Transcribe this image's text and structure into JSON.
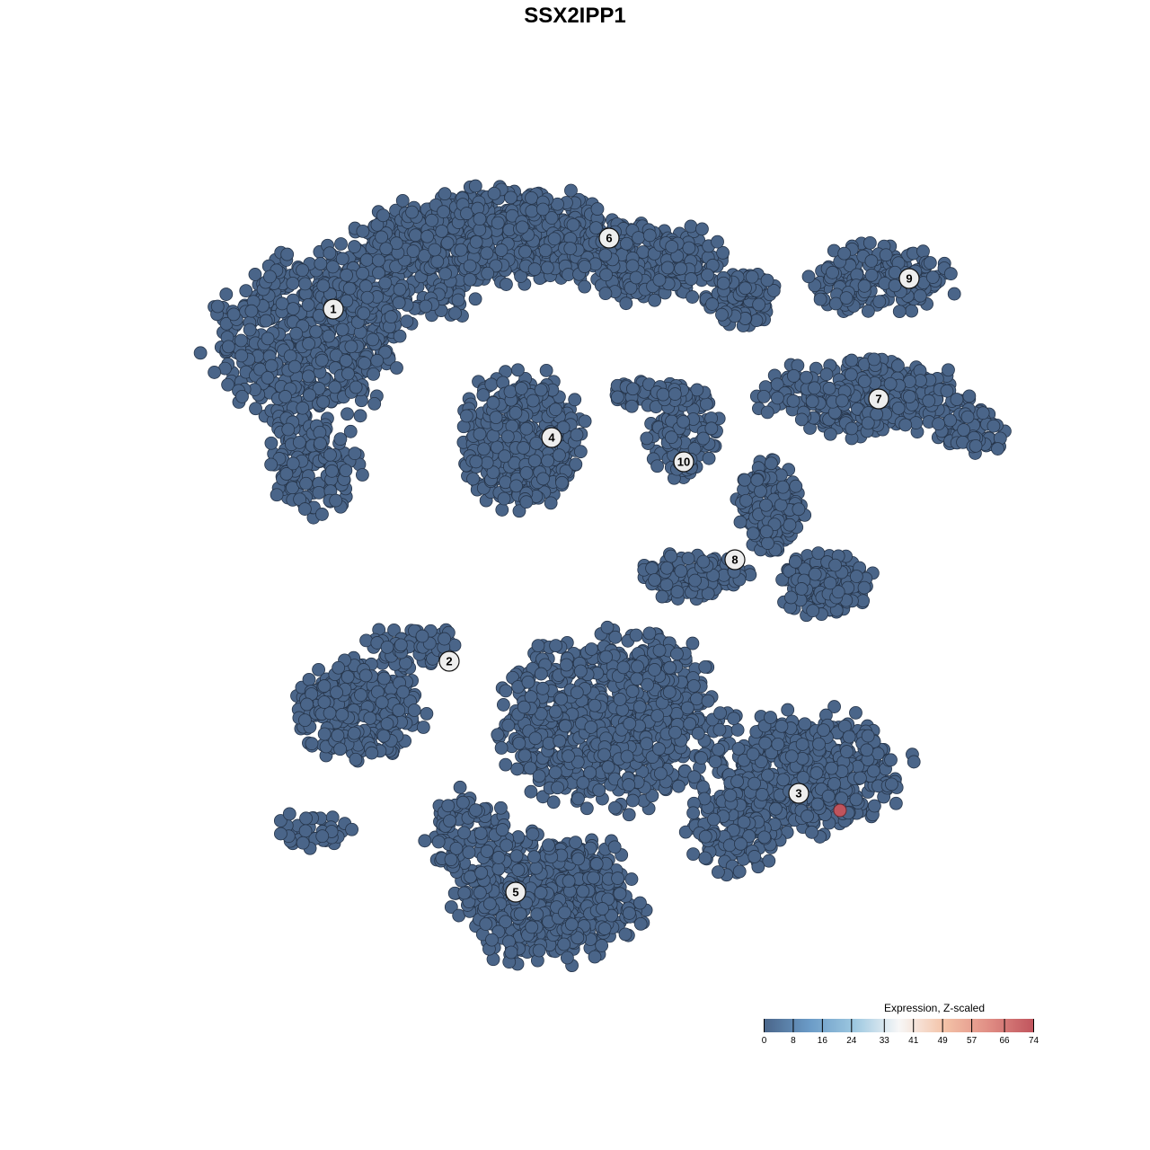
{
  "chart_data": {
    "type": "scatter",
    "title": "SSX2IPP1",
    "xlabel": "",
    "ylabel": "",
    "grid": false,
    "xlim": [
      -50,
      50
    ],
    "ylim": [
      -50,
      50
    ],
    "point_color_default": "#4a6589",
    "clusters": [
      {
        "label": "1",
        "x": -26.9,
        "y": 29.6
      },
      {
        "label": "2",
        "x": -14.0,
        "y": -9.6
      },
      {
        "label": "3",
        "x": 24.9,
        "y": -24.3
      },
      {
        "label": "4",
        "x": -2.6,
        "y": 15.3
      },
      {
        "label": "5",
        "x": -6.6,
        "y": -35.3
      },
      {
        "label": "6",
        "x": 3.8,
        "y": 37.5
      },
      {
        "label": "7",
        "x": 33.8,
        "y": 19.6
      },
      {
        "label": "8",
        "x": 17.8,
        "y": 1.7
      },
      {
        "label": "9",
        "x": 37.2,
        "y": 33.0
      },
      {
        "label": "10",
        "x": 12.1,
        "y": 12.6
      }
    ],
    "highlighted_points": [
      {
        "x": 29.5,
        "y": -26.2,
        "expression": 74,
        "color": "#c0545d"
      }
    ],
    "colorbar": {
      "title": "Expression, Z-scaled",
      "ticks": [
        "0",
        "8",
        "16",
        "24",
        "33",
        "41",
        "49",
        "57",
        "66",
        "74"
      ],
      "range": [
        0,
        74
      ],
      "colors": [
        "#4a6589",
        "#6a9ac6",
        "#9cc7e0",
        "#f7f7f7",
        "#f4c3a8",
        "#e08d84",
        "#c0545d"
      ]
    },
    "legend_position": "bottom-right"
  }
}
